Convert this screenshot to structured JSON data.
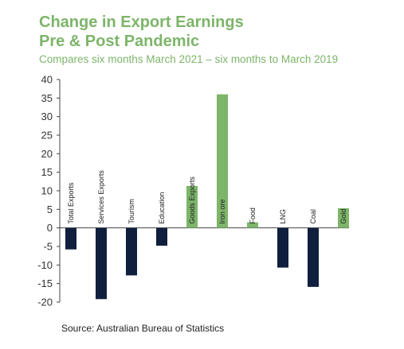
{
  "chart_data": {
    "type": "bar",
    "title": "Change in Export Earnings",
    "title_line2": "Pre & Post Pandemic",
    "subtitle": "Compares six months March 2021 – six months to March 2019",
    "source": "Source: Australian Bureau of Statistics",
    "categories": [
      "Total Exports",
      "Services Exports",
      "Tourism",
      "Education",
      "Goods Exports",
      "Iron ore",
      "Food",
      "LNG",
      "Coal",
      "Gold"
    ],
    "values": [
      -5.8,
      -19.2,
      -12.8,
      -4.8,
      11.3,
      36.0,
      1.5,
      -10.7,
      -15.9,
      5.3
    ],
    "ylim": [
      -20,
      40
    ],
    "yticks": [
      -20,
      -15,
      -10,
      -5,
      0,
      5,
      10,
      15,
      20,
      25,
      30,
      35,
      40
    ],
    "ytick_labels": [
      "-20",
      "-15",
      "-10",
      "-5",
      "0",
      "5",
      "10",
      "15",
      "20",
      "25",
      "30",
      "35",
      "40"
    ],
    "grid": false,
    "legend": "none",
    "colors": {
      "positive": "#7db56a",
      "negative": "#0f1f3d",
      "title": "#7db56a"
    }
  }
}
